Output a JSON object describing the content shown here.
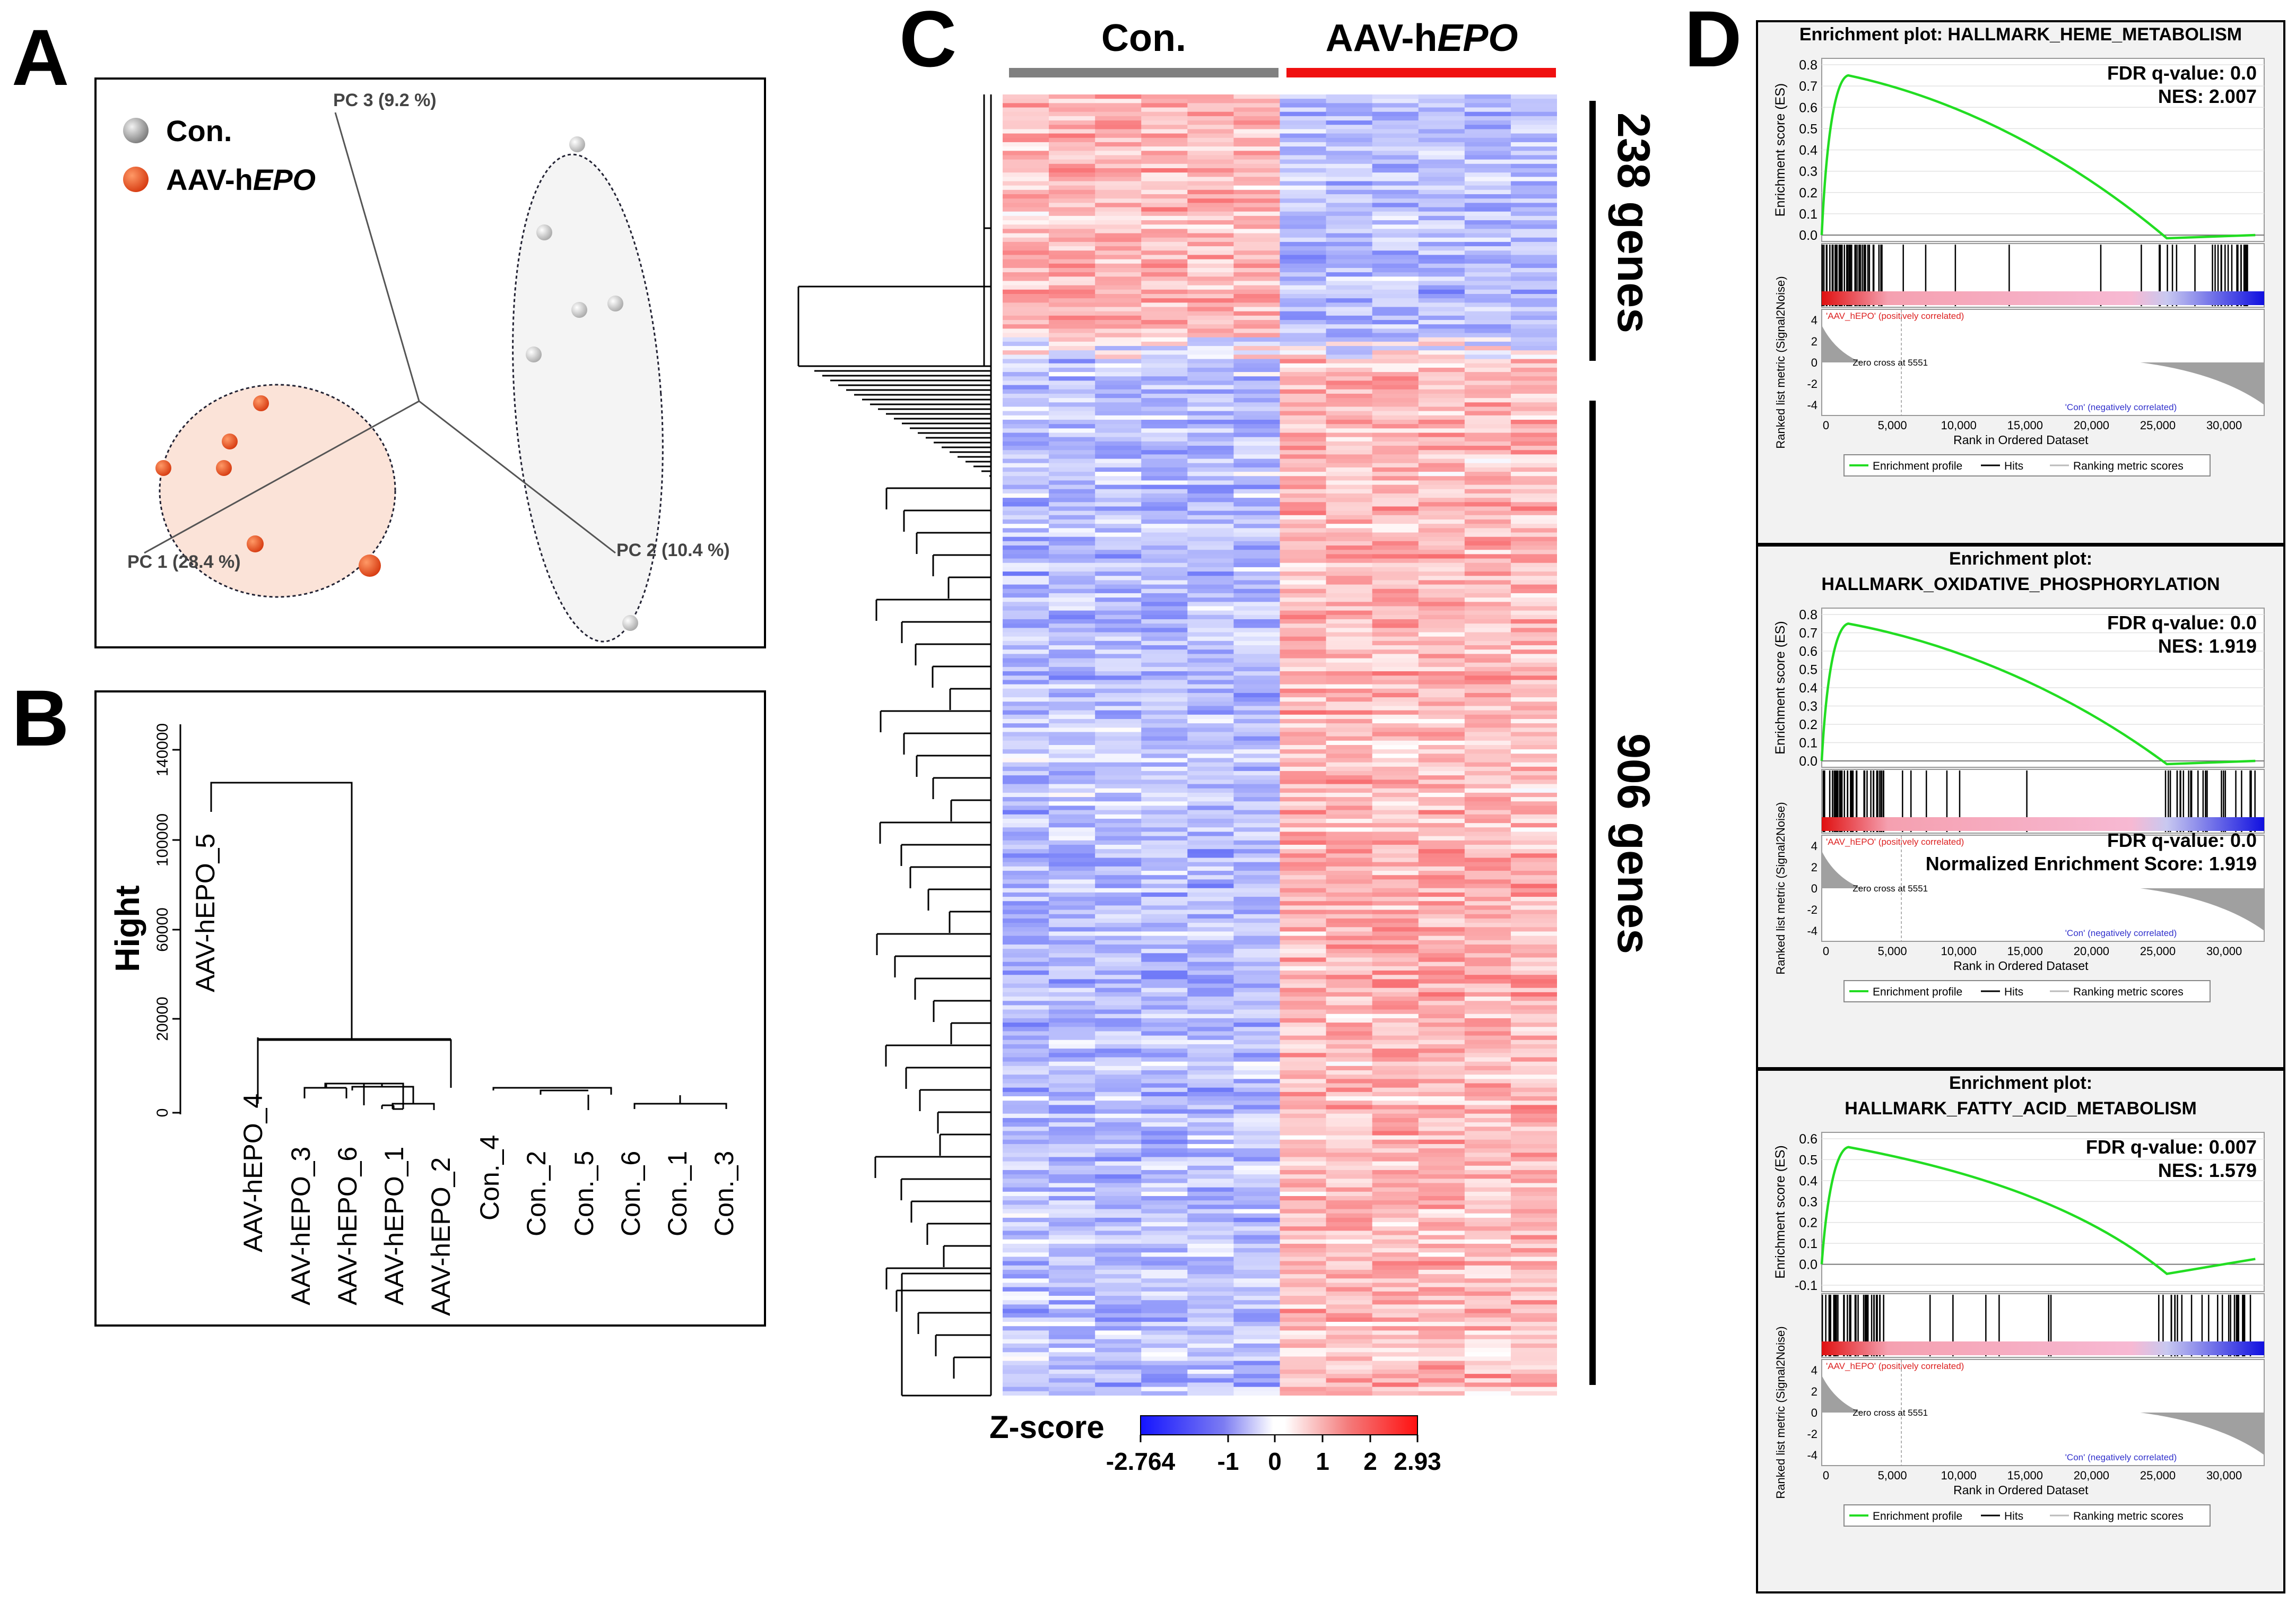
{
  "panel_labels": {
    "a": "A",
    "b": "B",
    "c": "C",
    "d": "D"
  },
  "colors": {
    "con": "#808080",
    "aav": "#e8461e",
    "blue": "#2b35f0",
    "red": "#f0393e",
    "gsea_line": "#22dd22"
  },
  "panel_a": {
    "legend": {
      "con": "Con.",
      "aav_prefix": "AAV-h",
      "aav_italic": "EPO"
    },
    "axes": {
      "pc1": "PC 1 (28.4 %)",
      "pc2": "PC 2 (10.4 %)",
      "pc3": "PC 3 (9.2 %)"
    }
  },
  "panel_b": {
    "ylabel": "Hight",
    "ticks": [
      "0",
      "20000",
      "60000",
      "100000",
      "140000"
    ],
    "leaves": [
      "AAV-hEPO_5",
      "AAV-hEPO_4",
      "AAV-hEPO_3",
      "AAV-hEPO_6",
      "AAV-hEPO_1",
      "AAV-hEPO_2",
      "Con._4",
      "Con._2",
      "Con._5",
      "Con._6",
      "Con._1",
      "Con._3"
    ]
  },
  "panel_c": {
    "groups": {
      "con": "Con.",
      "aav_prefix": "AAV-h",
      "aav_italic": "EPO"
    },
    "clusters": {
      "top": "238 genes",
      "bottom": "906 genes"
    },
    "scale_title": "Z-score",
    "scale_ticks": [
      "-2.764",
      "-1",
      "0",
      "1",
      "2",
      "2.93"
    ]
  },
  "panel_d": {
    "common": {
      "es_ylabel": "Enrichment score (ES)",
      "rank_ylabel": "Ranked list metric (Signal2Noise)",
      "xlabel": "Rank in Ordered Dataset",
      "x_ticks": [
        "0",
        "5,000",
        "10,000",
        "15,000",
        "20,000",
        "25,000",
        "30,000"
      ],
      "rank_ticks": [
        "4",
        "2",
        "0",
        "-2",
        "-4"
      ],
      "pos_label": "'AAV_hEPO' (positively correlated)",
      "neg_label": "'Con' (negatively correlated)",
      "zero_cross": "Zero cross at 5551",
      "legend": [
        "Enrichment profile",
        "Hits",
        "Ranking metric scores"
      ]
    },
    "plots": [
      {
        "title1": "Enrichment plot: HALLMARK_HEME_METABOLISM",
        "title2": "",
        "fdr": "FDR q-value: 0.0",
        "nes": "NES: 2.007",
        "es_ticks": [
          "0.8",
          "0.7",
          "0.6",
          "0.5",
          "0.4",
          "0.3",
          "0.2",
          "0.1",
          "0.0"
        ]
      },
      {
        "title1": "Enrichment plot:",
        "title2": "HALLMARK_OXIDATIVE_PHOSPHORYLATION",
        "fdr": "FDR q-value: 0.0",
        "nes": "NES: 1.919",
        "fdr2": "FDR q-value: 0.0",
        "nes2": "Normalized Enrichment Score: 1.919",
        "es_ticks": [
          "0.8",
          "0.7",
          "0.6",
          "0.5",
          "0.4",
          "0.3",
          "0.2",
          "0.1",
          "0.0"
        ]
      },
      {
        "title1": "Enrichment plot:",
        "title2": "HALLMARK_FATTY_ACID_METABOLISM",
        "fdr": "FDR q-value: 0.007",
        "nes": "NES: 1.579",
        "es_ticks": [
          "0.6",
          "0.5",
          "0.4",
          "0.3",
          "0.2",
          "0.1",
          "0.0",
          "-0.1"
        ]
      }
    ]
  }
}
